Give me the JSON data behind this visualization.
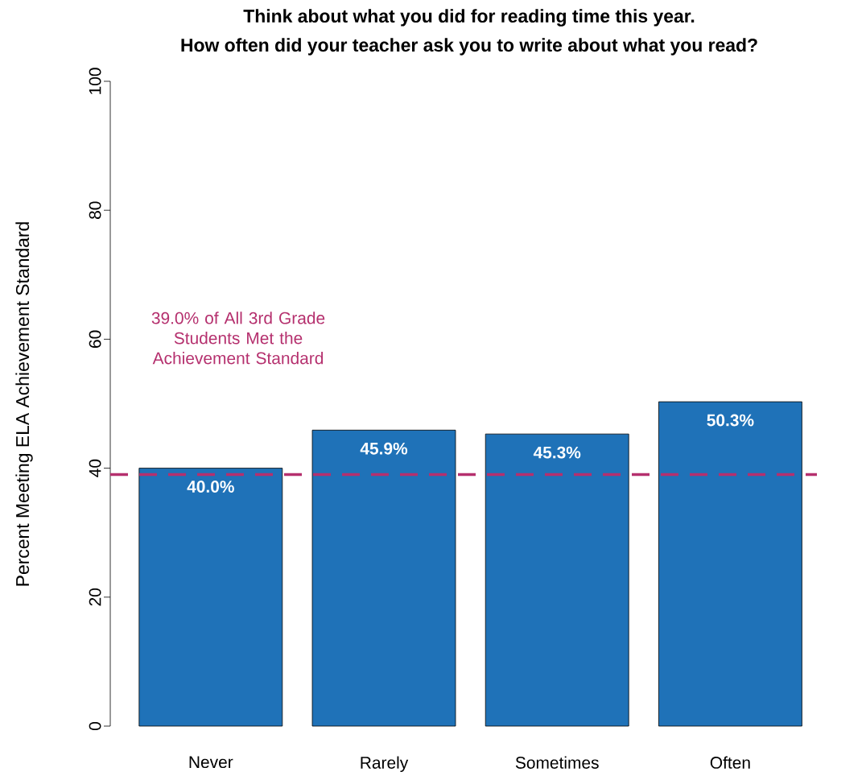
{
  "chart_data": {
    "type": "bar",
    "title": "Think about what you did for reading time this year.",
    "subtitle": "How often did your teacher ask you to write about what you read?",
    "ylabel": "Percent Meeting ELA Achievement Standard",
    "categories": [
      "Never",
      "Rarely",
      "Sometimes",
      "Often"
    ],
    "values": [
      40.0,
      45.9,
      45.3,
      50.3
    ],
    "value_labels": [
      "40.0%",
      "45.9%",
      "45.3%",
      "50.3%"
    ],
    "color": "#1f72b8",
    "ylim": [
      0,
      100
    ],
    "yticks": [
      0,
      20,
      40,
      60,
      80,
      100
    ],
    "ref_lines": [
      {
        "axis": "y",
        "value": 39.0,
        "label": "39.0% of All 3rd Grade Students Met the Achievement Standard",
        "color": "#b5306e",
        "line_style": "dashed"
      }
    ]
  }
}
